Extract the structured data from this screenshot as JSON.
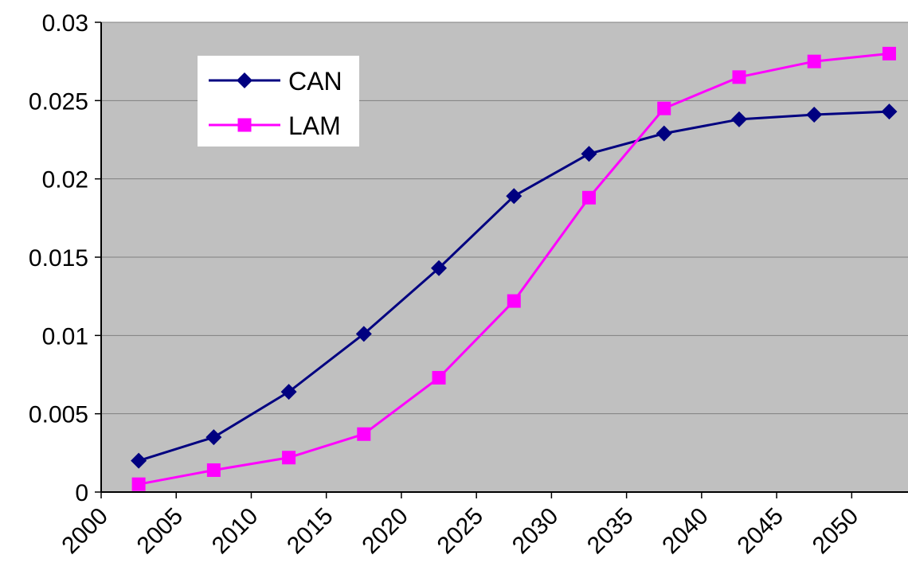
{
  "chart_data": {
    "type": "line",
    "title": "",
    "xlabel": "",
    "ylabel": "",
    "x_ticks": [
      "2000",
      "2005",
      "2010",
      "2015",
      "2020",
      "2025",
      "2030",
      "2035",
      "2040",
      "2045",
      "2050"
    ],
    "y_ticks": [
      "0",
      "0.005",
      "0.01",
      "0.015",
      "0.02",
      "0.025",
      "0.03"
    ],
    "xlim": [
      2000,
      2053.75
    ],
    "ylim": [
      0,
      0.03
    ],
    "grid": "horizontal",
    "legend_position": "top-left",
    "plot_background": "#c0c0c0",
    "x": [
      2002.5,
      2007.5,
      2012.5,
      2017.5,
      2022.5,
      2027.5,
      2032.5,
      2037.5,
      2042.5,
      2047.5,
      2052.5
    ],
    "series": [
      {
        "name": "CAN",
        "color": "#000080",
        "marker": "diamond",
        "values": [
          0.002,
          0.0035,
          0.0064,
          0.0101,
          0.0143,
          0.0189,
          0.0216,
          0.0229,
          0.0238,
          0.0241,
          0.0243
        ]
      },
      {
        "name": "LAM",
        "color": "#ff00ff",
        "marker": "square",
        "values": [
          0.0005,
          0.0014,
          0.0022,
          0.0037,
          0.0073,
          0.0122,
          0.0188,
          0.0245,
          0.0265,
          0.0275,
          0.028
        ]
      }
    ]
  }
}
